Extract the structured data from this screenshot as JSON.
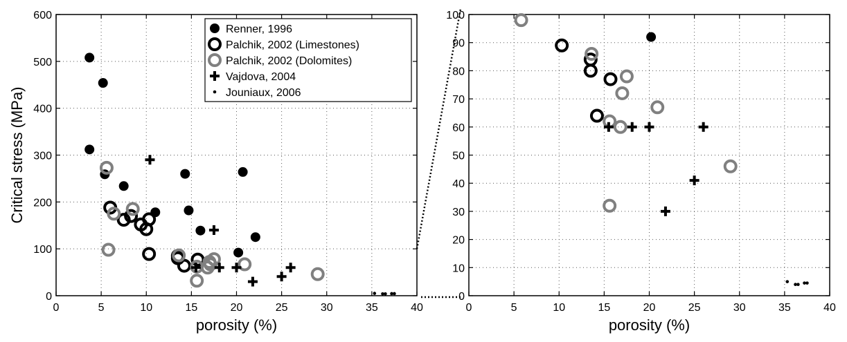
{
  "chart_data": [
    {
      "type": "scatter",
      "xlabel": "porosity (%)",
      "ylabel": "Critical stress (MPa)",
      "xlim": [
        0,
        40
      ],
      "ylim": [
        0,
        600
      ],
      "xticks": [
        0,
        5,
        10,
        15,
        20,
        25,
        30,
        35,
        40
      ],
      "yticks": [
        0,
        100,
        200,
        300,
        400,
        500,
        600
      ],
      "grid": true,
      "legend": "top-right",
      "series": [
        {
          "name": "Renner, 1996",
          "marker": "filled-circle",
          "color": "#000000",
          "x": [
            3.7,
            5.2,
            3.7,
            5.4,
            7.5,
            11.0,
            14.3,
            14.7,
            16.0,
            20.7,
            20.2,
            22.1
          ],
          "y": [
            508,
            454,
            312,
            259,
            234,
            178,
            260,
            182,
            139,
            264,
            92,
            125
          ]
        },
        {
          "name": "Palchik, 2002 (Limestones)",
          "marker": "open-circle",
          "color": "#000000",
          "x": [
            6.0,
            7.5,
            8.3,
            9.4,
            10.0,
            10.3,
            10.3,
            13.5,
            13.5,
            14.2,
            15.7
          ],
          "y": [
            188,
            162,
            170,
            152,
            142,
            163,
            89,
            85,
            80,
            64,
            77
          ]
        },
        {
          "name": "Palchik, 2002 (Dolomites)",
          "marker": "open-circle",
          "color": "#808080",
          "x": [
            5.6,
            5.8,
            6.4,
            8.5,
            13.6,
            15.6,
            15.6,
            16.8,
            17.0,
            17.1,
            17.5,
            20.9,
            29.0
          ],
          "y": [
            273,
            98,
            175,
            185,
            86,
            32,
            62,
            60,
            72,
            67,
            78,
            67,
            46
          ]
        },
        {
          "name": "Vajdova, 2004",
          "marker": "plus",
          "color": "#000000",
          "x": [
            10.4,
            15.5,
            17.5,
            18.1,
            20.0,
            21.8,
            25.0,
            26.0
          ],
          "y": [
            290,
            60,
            140,
            60,
            60,
            30,
            41,
            60
          ]
        },
        {
          "name": "Jouniaux, 2006",
          "marker": "dot",
          "color": "#000000",
          "x": [
            35.3,
            36.2,
            36.5,
            37.2,
            37.5
          ],
          "y": [
            5,
            4,
            4,
            4.5,
            4.5
          ]
        }
      ]
    },
    {
      "type": "scatter",
      "xlabel": "porosity (%)",
      "ylabel": "",
      "xlim": [
        0,
        40
      ],
      "ylim": [
        0,
        100
      ],
      "xticks": [
        0,
        5,
        10,
        15,
        20,
        25,
        30,
        35,
        40
      ],
      "yticks": [
        0,
        10,
        20,
        30,
        40,
        50,
        60,
        70,
        80,
        90,
        100
      ],
      "grid": true,
      "series": [
        {
          "name": "Renner, 1996",
          "marker": "filled-circle",
          "color": "#000000",
          "x": [
            20.2
          ],
          "y": [
            92
          ]
        },
        {
          "name": "Palchik, 2002 (Limestones)",
          "marker": "open-circle",
          "color": "#000000",
          "x": [
            10.3,
            13.5,
            13.5,
            14.2,
            15.7
          ],
          "y": [
            89,
            84,
            80,
            64,
            77
          ]
        },
        {
          "name": "Palchik, 2002 (Dolomites)",
          "marker": "open-circle",
          "color": "#808080",
          "x": [
            5.8,
            13.6,
            15.6,
            15.6,
            16.8,
            17.0,
            17.5,
            20.9,
            29.0
          ],
          "y": [
            98,
            86,
            62,
            32,
            60,
            72,
            78,
            67,
            46
          ]
        },
        {
          "name": "Vajdova, 2004",
          "marker": "plus",
          "color": "#000000",
          "x": [
            15.5,
            18.1,
            20.0,
            26.0,
            25.0,
            21.8
          ],
          "y": [
            60,
            60,
            60,
            60,
            41,
            30
          ]
        },
        {
          "name": "Jouniaux, 2006",
          "marker": "dot",
          "color": "#000000",
          "x": [
            35.3,
            36.2,
            36.5,
            37.2,
            37.5
          ],
          "y": [
            5,
            4,
            4,
            4.5,
            4.5
          ]
        }
      ]
    }
  ]
}
